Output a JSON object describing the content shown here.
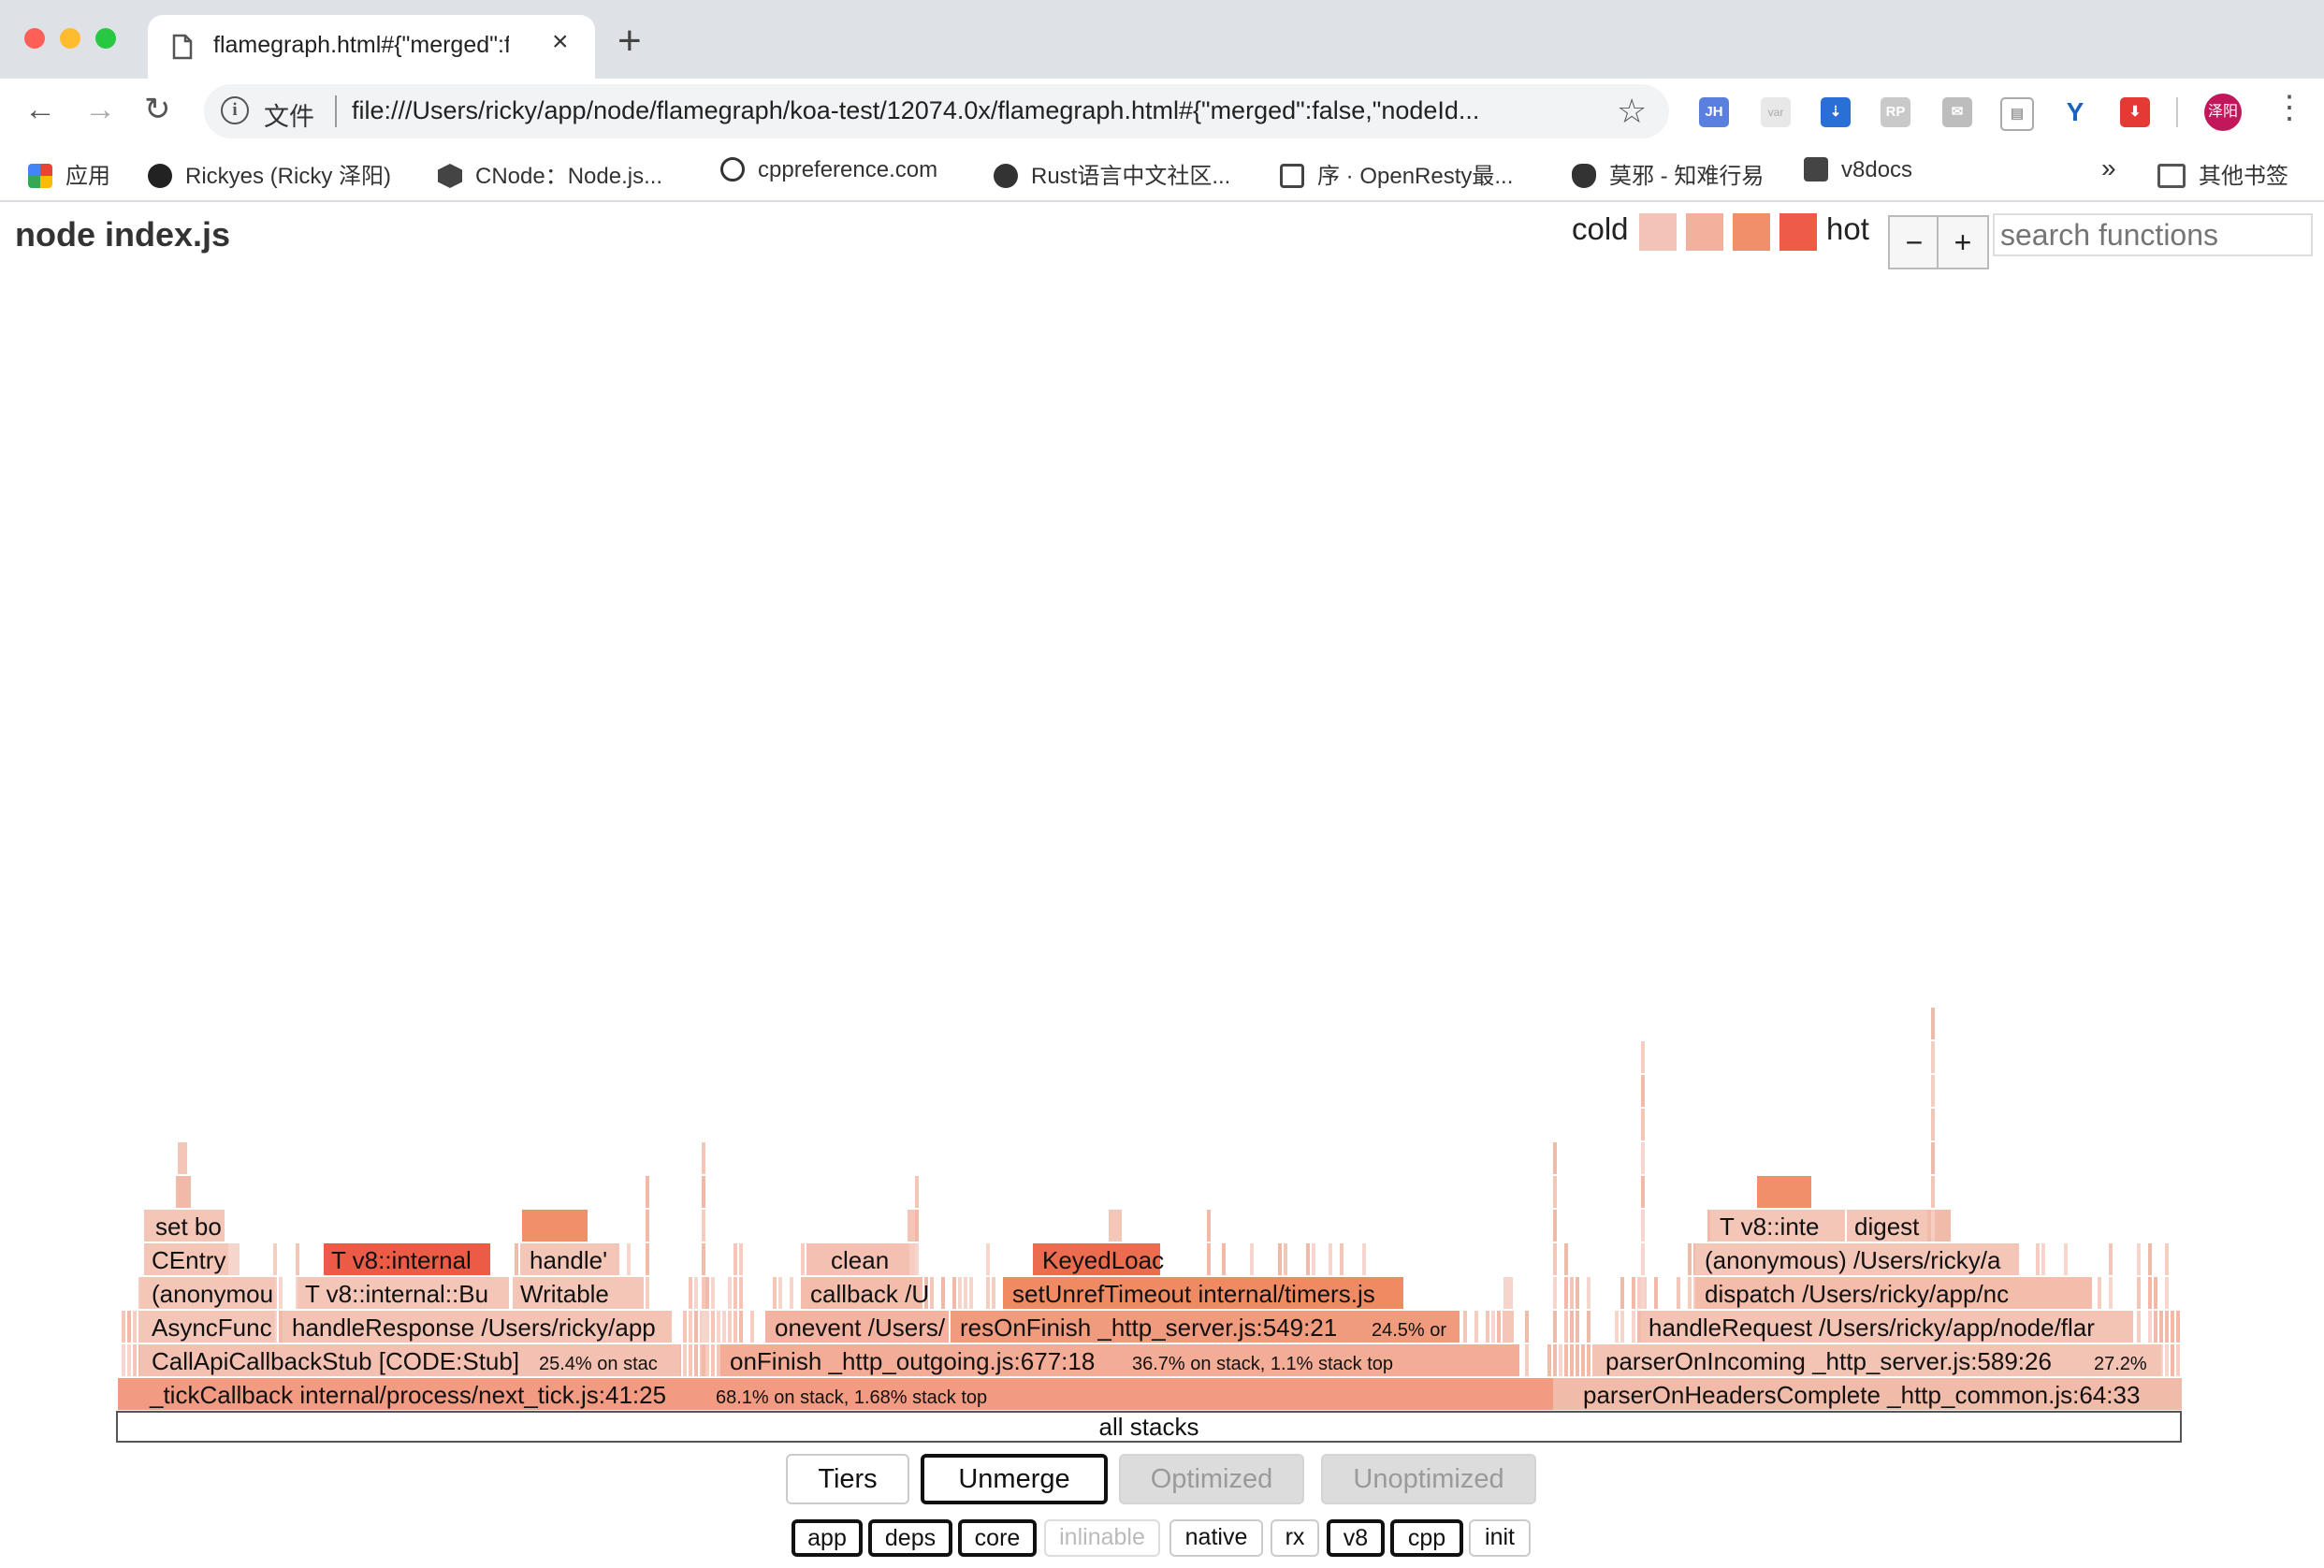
{
  "browser": {
    "tab_title": "flamegraph.html#{\"merged\":fal",
    "address_scheme_label": "文件",
    "url": "file:///Users/ricky/app/node/flamegraph/koa-test/12074.0x/flamegraph.html#{\"merged\":false,\"nodeId...",
    "extensions": [
      "JH",
      "var",
      "pocket",
      "RP",
      "mail",
      "panel",
      "Y",
      "ext",
      "avatar"
    ],
    "avatar_label": "泽阳",
    "bookmarks": [
      {
        "label": "应用",
        "icon": "apps-grid-icon"
      },
      {
        "label": "Rickyes (Ricky 泽阳)",
        "icon": "github-icon"
      },
      {
        "label": "CNode：Node.js...",
        "icon": "cnode-icon"
      },
      {
        "label": "cppreference.com",
        "icon": "cppreference-icon"
      },
      {
        "label": "Rust语言中文社区...",
        "icon": "rust-icon"
      },
      {
        "label": "序 · OpenResty最...",
        "icon": "book-icon"
      },
      {
        "label": "莫邪 - 知难行易",
        "icon": "cat-icon"
      },
      {
        "label": "v8docs",
        "icon": "v8docs-icon"
      }
    ],
    "bookmarks_overflow": "»",
    "other_bookmarks": "其他书签"
  },
  "page": {
    "title": "node index.js",
    "legend_cold": "cold",
    "legend_hot": "hot",
    "legend_colors": [
      "#f2c3b6",
      "#f3b09c",
      "#f08f69",
      "#ee5b48"
    ],
    "zoom_out": "−",
    "zoom_in": "+",
    "search_placeholder": "search functions",
    "root_label": "all stacks",
    "buttons": {
      "tiers": "Tiers",
      "unmerge": "Unmerge",
      "optimized": "Optimized",
      "unoptimized": "Unoptimized"
    },
    "filters": [
      {
        "label": "app",
        "state": "selected"
      },
      {
        "label": "deps",
        "state": "selected"
      },
      {
        "label": "core",
        "state": "selected"
      },
      {
        "label": "inlinable",
        "state": "disabled"
      },
      {
        "label": "native",
        "state": "on"
      },
      {
        "label": "rx",
        "state": "on"
      },
      {
        "label": "v8",
        "state": "selected"
      },
      {
        "label": "cpp",
        "state": "selected"
      },
      {
        "label": "init",
        "state": "on"
      }
    ]
  },
  "flame_labels": {
    "tick": "_tickCallback internal/process/next_tick.js:41:25",
    "tick_stat": "68.1% on stack, 1.68% stack top",
    "headers": "parserOnHeadersComplete _http_common.js:64:33",
    "callapi": "CallApiCallbackStub [CODE:Stub]",
    "callapi_stat": "25.4% on stac",
    "onfinish": "onFinish _http_outgoing.js:677:18",
    "onfinish_stat": "36.7% on stack, 1.1% stack top",
    "incoming": "parserOnIncoming _http_server.js:589:26",
    "incoming_stat": "27.2%",
    "asyncfunc": "AsyncFunc",
    "handleresponse": "handleResponse /Users/ricky/app",
    "onevent": "onevent /Users/",
    "resonfinish": "resOnFinish _http_server.js:549:21",
    "resonfinish_stat": "24.5% or",
    "handlerequest": "handleRequest /Users/ricky/app/node/flar",
    "anonymous1": "(anonymou",
    "tv8bu": "T v8::internal::Bu",
    "writable": "Writable",
    "callback": "callback /U",
    "setunref": "setUnrefTimeout internal/timers.js",
    "dispatch": "dispatch /Users/ricky/app/nc",
    "centry": "CEntry",
    "tv8internal": "T v8::internal",
    "handle": "handle'",
    "clean": "clean",
    "keyedload": "KeyedLoac",
    "anonymous2": "(anonymous) /Users/ricky/a",
    "setbo": "set bo",
    "tv8inte": "T v8::inte",
    "digest": "digest"
  }
}
